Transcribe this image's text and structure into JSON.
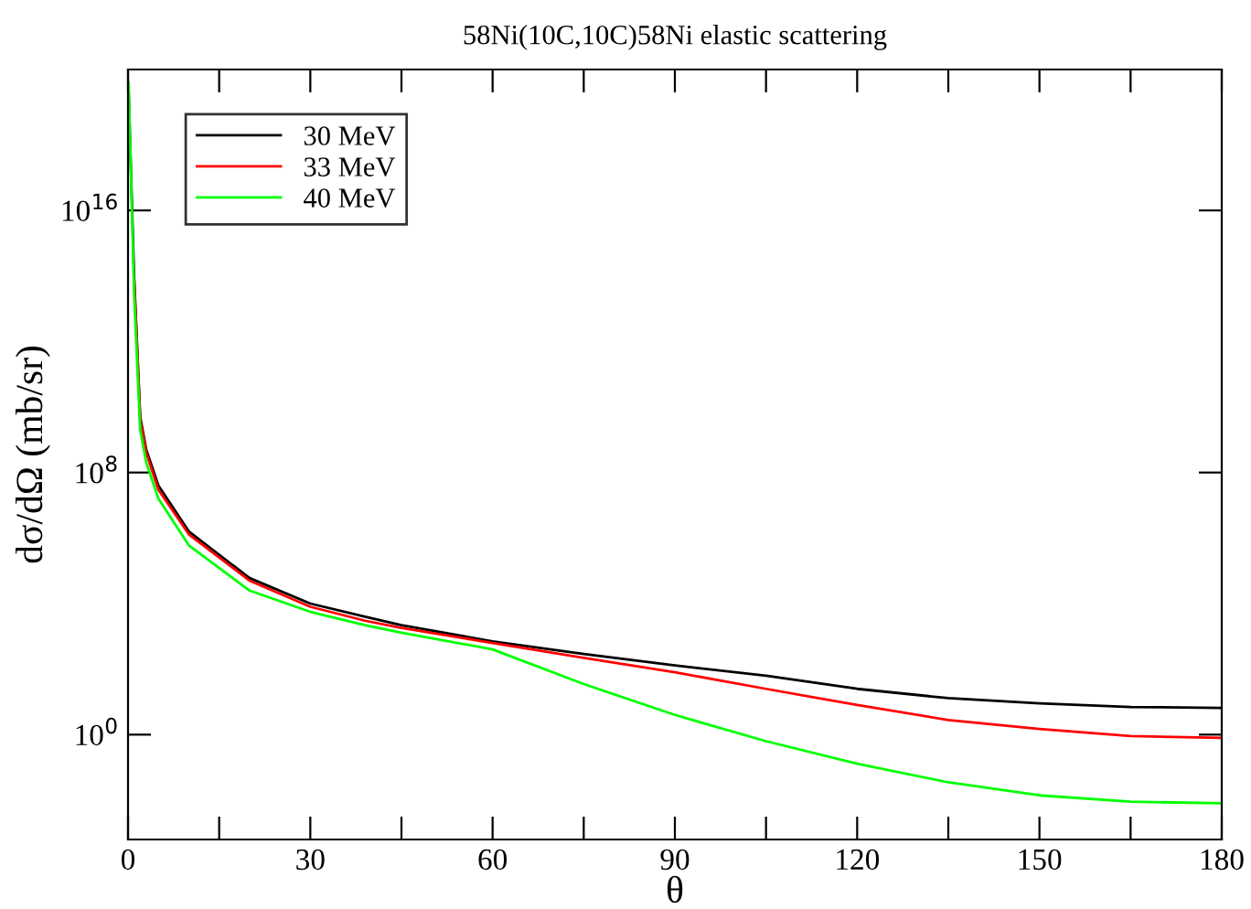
{
  "chart_data": {
    "type": "line",
    "title": "58Ni(10C,10C)58Ni elastic scattering",
    "xlabel": "θ",
    "ylabel": "dσ/dΩ (mb/sr)",
    "log": "y",
    "xlim": [
      0,
      180
    ],
    "ylim": [
      0.00063,
      2e+20
    ],
    "xticks": [
      0,
      {
        "value": 15,
        "label": null
      },
      30,
      {
        "value": 45,
        "label": null
      },
      60,
      {
        "value": 75,
        "label": null
      },
      90,
      {
        "value": 105,
        "label": null
      },
      120,
      {
        "value": 135,
        "label": null
      },
      150,
      {
        "value": 165,
        "label": null
      },
      180
    ],
    "yticks": [
      {
        "value": 1,
        "label": "10$^{0}$"
      },
      {
        "value": 100000000.0,
        "label": "10$^{8}$"
      },
      {
        "value": 1e+16,
        "label": "10$^{16}$"
      }
    ],
    "x": [
      0.1,
      1,
      2,
      3,
      5,
      10,
      20,
      30,
      39,
      45,
      60,
      75,
      90,
      105,
      120,
      135,
      150,
      165,
      180
    ],
    "series": [
      {
        "name": "30 MeV",
        "color": "#000000",
        "values": [
          4e+19,
          100000000000000.0,
          5000000000.0,
          500000000.0,
          40000000.0,
          1600000.0,
          60000.0,
          10000.0,
          4000.0,
          2200.0,
          700,
          290,
          130,
          63,
          25,
          13,
          9,
          7,
          6.5
        ]
      },
      {
        "name": "33 MeV",
        "color": "#ff0000",
        "values": [
          null,
          80000000000000.0,
          4000000000.0,
          400000000.0,
          30000000.0,
          1300000.0,
          50000.0,
          8000.0,
          3000.0,
          1800.0,
          630,
          220,
          80,
          25,
          8,
          2.8,
          1.5,
          0.9,
          0.8
        ]
      },
      {
        "name": "40 MeV",
        "color": "#00ff00",
        "values": [
          8e+19,
          30000000000000.0,
          2000000000.0,
          200000000.0,
          16000000.0,
          600000.0,
          25000.0,
          5600.0,
          2200.0,
          1300.0,
          400,
          35,
          4,
          0.63,
          0.13,
          0.035,
          0.014,
          0.009,
          0.008
        ]
      }
    ],
    "legend": "top left",
    "grid": false,
    "marker": "none",
    "line_style": "solid"
  }
}
